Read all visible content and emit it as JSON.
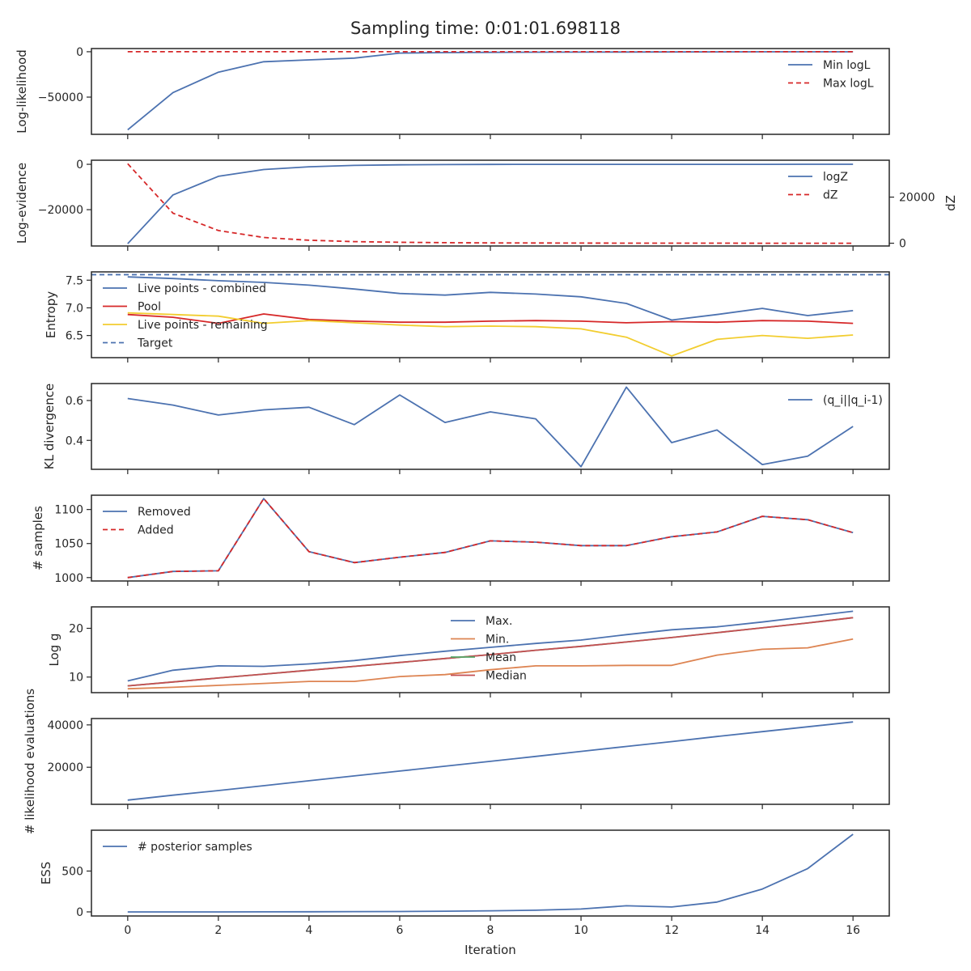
{
  "title": "Sampling time: 0:01:01.698118",
  "x_axis": {
    "label": "Iteration",
    "ticks": [
      0,
      2,
      4,
      6,
      8,
      10,
      12,
      14,
      16
    ],
    "range": [
      -0.8,
      16.8
    ]
  },
  "colors": {
    "blue": "#4c72b0",
    "red": "#d62728",
    "yellow": "#f2cd2f",
    "orange": "#dd8452",
    "green": "#55a868",
    "brown": "#c44e52"
  },
  "chart_data": [
    {
      "type": "line",
      "ylabel": "Log-likelihood",
      "ylim": [
        -91000,
        3500
      ],
      "yticks": [
        {
          "v": 0,
          "label": "0"
        },
        {
          "v": -50000,
          "label": "−50000"
        }
      ],
      "legend_loc": "upper-right",
      "x": [
        0,
        1,
        2,
        3,
        4,
        5,
        6,
        7,
        8,
        9,
        10,
        11,
        12,
        13,
        14,
        15,
        16
      ],
      "series": [
        {
          "name": "Min logL",
          "color": "#4c72b0",
          "dash": false,
          "values": [
            -86000,
            -45000,
            -22500,
            -11000,
            -9000,
            -7000,
            -1500,
            -1000,
            -700,
            -500,
            -400,
            -300,
            -200,
            -150,
            -100,
            -80,
            -60
          ]
        },
        {
          "name": "Max logL",
          "color": "#d62728",
          "dash": true,
          "values": [
            0,
            0,
            0,
            0,
            0,
            0,
            0,
            0,
            0,
            0,
            0,
            0,
            0,
            0,
            0,
            0,
            0
          ]
        }
      ]
    },
    {
      "type": "line",
      "ylabel": "Log-evidence",
      "ylim": [
        -36000,
        1800
      ],
      "yticks": [
        {
          "v": 0,
          "label": "0"
        },
        {
          "v": -20000,
          "label": "−20000"
        }
      ],
      "legend_loc": "upper-right",
      "x": [
        0,
        1,
        2,
        3,
        4,
        5,
        6,
        7,
        8,
        9,
        10,
        11,
        12,
        13,
        14,
        15,
        16
      ],
      "series": [
        {
          "name": "logZ",
          "color": "#4c72b0",
          "dash": false,
          "values": [
            -35000,
            -13500,
            -5300,
            -2300,
            -1100,
            -500,
            -250,
            -120,
            -60,
            -30,
            -15,
            -8,
            -4,
            -2,
            -1,
            -0.5,
            -0.2
          ]
        },
        {
          "name": "dZ",
          "color": "#d62728",
          "dash": true,
          "axis": "right",
          "values": [
            34500,
            13000,
            5500,
            2500,
            1300,
            700,
            400,
            250,
            150,
            100,
            60,
            40,
            25,
            15,
            10,
            5,
            2
          ]
        }
      ],
      "ylabel_right": "dZ",
      "ylim_right": [
        -1200,
        36000
      ],
      "yticks_right": [
        {
          "v": 0,
          "label": "0"
        },
        {
          "v": 20000,
          "label": "20000"
        }
      ]
    },
    {
      "type": "line",
      "ylabel": "Entropy",
      "ylim": [
        6.1,
        7.65
      ],
      "yticks": [
        {
          "v": 6.5,
          "label": "6.5"
        },
        {
          "v": 7.0,
          "label": "7.0"
        },
        {
          "v": 7.5,
          "label": "7.5"
        }
      ],
      "legend_loc": "upper-left",
      "x": [
        0,
        1,
        2,
        3,
        4,
        5,
        6,
        7,
        8,
        9,
        10,
        11,
        12,
        13,
        14,
        15,
        16
      ],
      "series": [
        {
          "name": "Live points - combined",
          "color": "#4c72b0",
          "dash": false,
          "values": [
            7.56,
            7.53,
            7.49,
            7.46,
            7.41,
            7.34,
            7.26,
            7.23,
            7.28,
            7.25,
            7.2,
            7.08,
            6.78,
            6.88,
            6.99,
            6.86,
            6.95
          ]
        },
        {
          "name": "Pool",
          "color": "#d62728",
          "dash": false,
          "values": [
            6.88,
            6.83,
            6.72,
            6.89,
            6.79,
            6.76,
            6.74,
            6.74,
            6.76,
            6.77,
            6.76,
            6.73,
            6.75,
            6.74,
            6.77,
            6.76,
            6.72
          ]
        },
        {
          "name": "Live points - remaining",
          "color": "#f2cd2f",
          "dash": false,
          "values": [
            6.91,
            6.88,
            6.85,
            6.72,
            6.77,
            6.73,
            6.69,
            6.66,
            6.67,
            6.66,
            6.62,
            6.47,
            6.13,
            6.43,
            6.5,
            6.45,
            6.51
          ]
        },
        {
          "name": "Target",
          "color": "#4c72b0",
          "dash": true,
          "hline": 7.6
        }
      ]
    },
    {
      "type": "line",
      "ylabel": "KL divergence",
      "ylim": [
        0.255,
        0.685
      ],
      "yticks": [
        {
          "v": 0.4,
          "label": "0.4"
        },
        {
          "v": 0.6,
          "label": "0.6"
        }
      ],
      "legend_loc": "upper-right",
      "x": [
        0,
        1,
        2,
        3,
        4,
        5,
        6,
        7,
        8,
        9,
        10,
        11,
        12,
        13,
        14,
        15,
        16
      ],
      "series": [
        {
          "name": "(q_i||q_i-1)",
          "color": "#4c72b0",
          "dash": false,
          "values": [
            0.61,
            0.577,
            0.527,
            0.553,
            0.566,
            0.479,
            0.628,
            0.49,
            0.543,
            0.508,
            0.268,
            0.667,
            0.389,
            0.452,
            0.279,
            0.321,
            0.47
          ]
        }
      ]
    },
    {
      "type": "line",
      "ylabel": "# samples",
      "ylim": [
        995,
        1121
      ],
      "yticks": [
        {
          "v": 1000,
          "label": "1000"
        },
        {
          "v": 1050,
          "label": "1050"
        },
        {
          "v": 1100,
          "label": "1100"
        }
      ],
      "legend_loc": "upper-left",
      "x": [
        0,
        1,
        2,
        3,
        4,
        5,
        6,
        7,
        8,
        9,
        10,
        11,
        12,
        13,
        14,
        15,
        16
      ],
      "series": [
        {
          "name": "Removed",
          "color": "#4c72b0",
          "dash": false,
          "values": [
            1000,
            1009,
            1010,
            1116,
            1038,
            1022,
            1030,
            1037,
            1054,
            1052,
            1047,
            1047,
            1060,
            1067,
            1090,
            1085,
            1066
          ]
        },
        {
          "name": "Added",
          "color": "#d62728",
          "dash": true,
          "values": [
            1000,
            1009,
            1010,
            1116,
            1038,
            1022,
            1030,
            1037,
            1054,
            1052,
            1047,
            1047,
            1060,
            1067,
            1090,
            1085,
            1066
          ]
        }
      ]
    },
    {
      "type": "line",
      "ylabel": "Log g",
      "ylim": [
        6.8,
        24.4
      ],
      "yticks": [
        {
          "v": 10,
          "label": "10"
        },
        {
          "v": 20,
          "label": "20"
        }
      ],
      "legend_loc": "upper-center",
      "x": [
        0,
        1,
        2,
        3,
        4,
        5,
        6,
        7,
        8,
        9,
        10,
        11,
        12,
        13,
        14,
        15,
        16
      ],
      "series": [
        {
          "name": "Max.",
          "color": "#4c72b0",
          "dash": false,
          "values": [
            9.2,
            11.4,
            12.3,
            12.2,
            12.7,
            13.4,
            14.4,
            15.3,
            16.1,
            16.9,
            17.6,
            18.7,
            19.7,
            20.3,
            21.3,
            22.4,
            23.5
          ]
        },
        {
          "name": "Min.",
          "color": "#dd8452",
          "dash": false,
          "values": [
            7.6,
            7.9,
            8.3,
            8.7,
            9.1,
            9.1,
            10.1,
            10.5,
            11.5,
            12.3,
            12.3,
            12.4,
            12.4,
            14.5,
            15.7,
            16.0,
            17.8
          ]
        },
        {
          "name": "Mean",
          "color": "#55a868",
          "dash": false,
          "values": [
            8.2,
            9.0,
            9.8,
            10.6,
            11.4,
            12.2,
            13.0,
            13.8,
            14.6,
            15.5,
            16.3,
            17.2,
            18.1,
            19.1,
            20.1,
            21.1,
            22.2
          ]
        },
        {
          "name": "Median",
          "color": "#c44e52",
          "dash": false,
          "values": [
            8.2,
            9.0,
            9.8,
            10.6,
            11.4,
            12.2,
            13.0,
            13.8,
            14.6,
            15.5,
            16.3,
            17.2,
            18.1,
            19.1,
            20.1,
            21.1,
            22.2
          ]
        }
      ]
    },
    {
      "type": "line",
      "ylabel": "# likelihood evaluations",
      "ylim": [
        2500,
        43000
      ],
      "yticks": [
        {
          "v": 20000,
          "label": "20000"
        },
        {
          "v": 40000,
          "label": "40000"
        }
      ],
      "legend_loc": "none",
      "x": [
        0,
        1,
        2,
        3,
        4,
        5,
        6,
        7,
        8,
        9,
        10,
        11,
        12,
        13,
        14,
        15,
        16
      ],
      "series": [
        {
          "color": "#4c72b0",
          "dash": false,
          "values": [
            4500,
            6800,
            9000,
            11300,
            13600,
            15900,
            18200,
            20500,
            22800,
            25100,
            27500,
            29800,
            32100,
            34500,
            36800,
            39100,
            41400
          ]
        }
      ]
    },
    {
      "type": "line",
      "ylabel": "ESS",
      "ylim": [
        -50,
        1000
      ],
      "yticks": [
        {
          "v": 0,
          "label": "0"
        },
        {
          "v": 500,
          "label": "500"
        }
      ],
      "legend_loc": "upper-left",
      "x": [
        0,
        1,
        2,
        3,
        4,
        5,
        6,
        7,
        8,
        9,
        10,
        11,
        12,
        13,
        14,
        15,
        16
      ],
      "series": [
        {
          "name": "# posterior samples",
          "color": "#4c72b0",
          "dash": false,
          "values": [
            0,
            0,
            0,
            1,
            2,
            3,
            4,
            8,
            13,
            20,
            35,
            75,
            60,
            120,
            280,
            530,
            950
          ]
        }
      ]
    }
  ]
}
